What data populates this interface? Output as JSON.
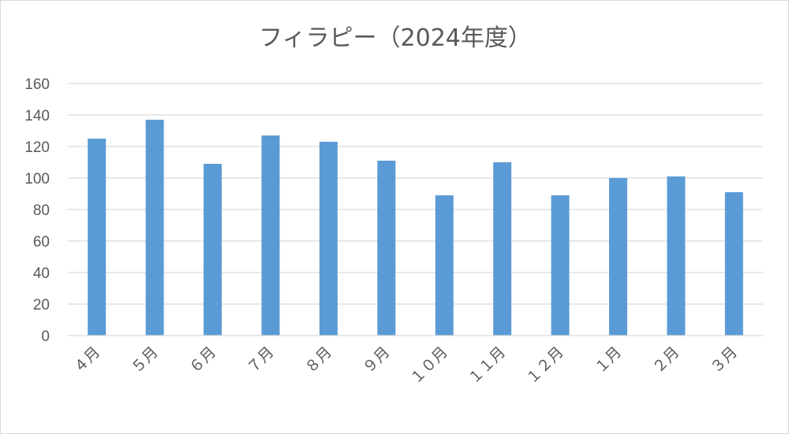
{
  "chart_data": {
    "type": "bar",
    "title": "フィラピー（2024年度）",
    "xlabel": "",
    "ylabel": "",
    "ylim": [
      0,
      160
    ],
    "ytick_step": 20,
    "grid": true,
    "legend": "none",
    "categories": [
      "４月",
      "５月",
      "６月",
      "７月",
      "８月",
      "９月",
      "１０月",
      "１１月",
      "１２月",
      "１月",
      "２月",
      "３月"
    ],
    "values": [
      125,
      137,
      109,
      127,
      123,
      111,
      89,
      110,
      89,
      100,
      101,
      91
    ],
    "bar_color": "#5b9bd5"
  }
}
